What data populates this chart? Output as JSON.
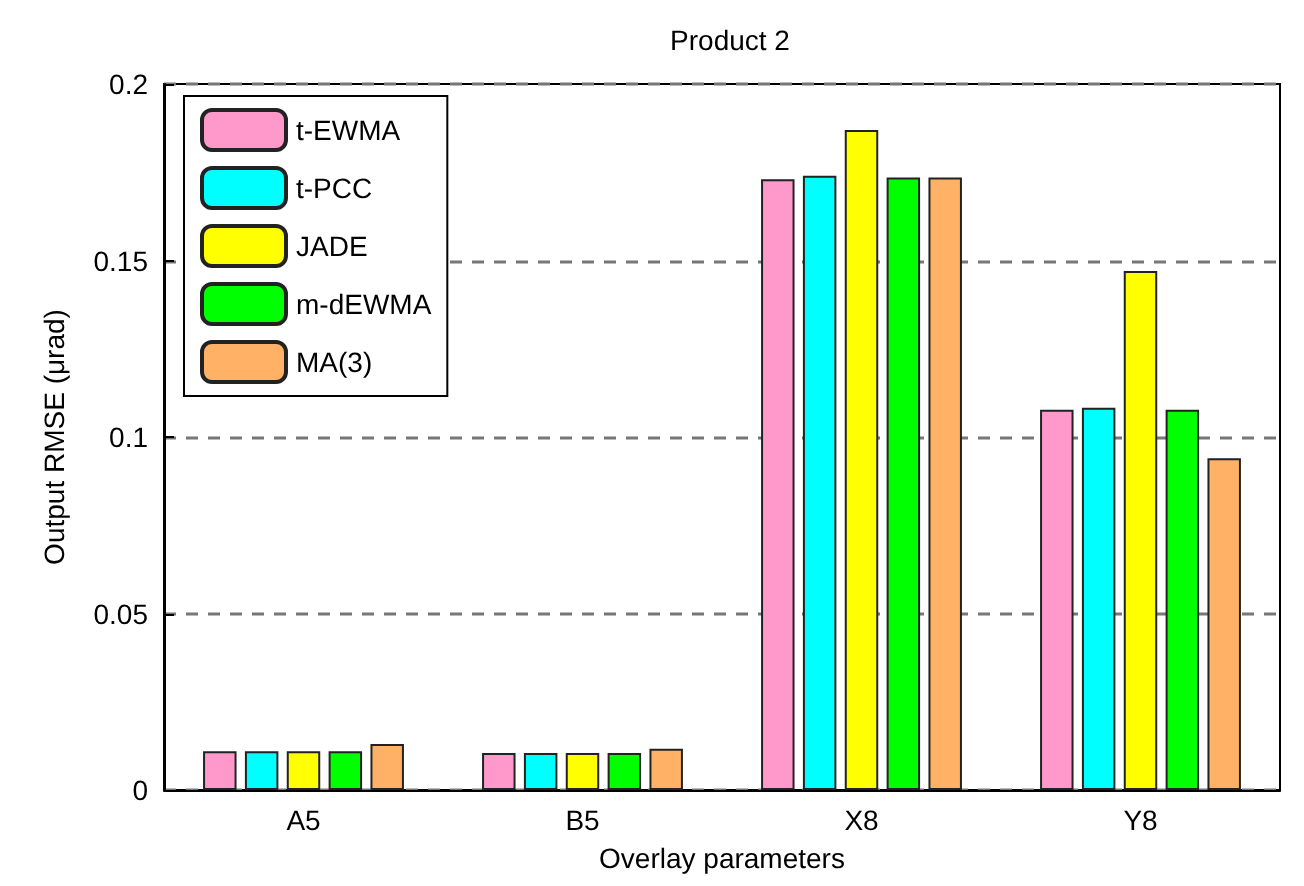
{
  "chart_data": {
    "type": "bar",
    "title": "Product 2",
    "xlabel": "Overlay parameters",
    "ylabel": "Output RMSE (μrad)",
    "categories": [
      "A5",
      "B5",
      "X8",
      "Y8"
    ],
    "series": [
      {
        "name": "t-EWMA",
        "color": "#ff99cc",
        "values": [
          0.011,
          0.0105,
          0.173,
          0.1077
        ]
      },
      {
        "name": "t-PCC",
        "color": "#00ffff",
        "values": [
          0.011,
          0.0105,
          0.174,
          0.1083
        ]
      },
      {
        "name": "JADE",
        "color": "#ffff00",
        "values": [
          0.011,
          0.0105,
          0.187,
          0.147
        ]
      },
      {
        "name": "m-dEWMA",
        "color": "#00ff00",
        "values": [
          0.011,
          0.0105,
          0.1735,
          0.1077
        ]
      },
      {
        "name": "MA(3)",
        "color": "#ffb266",
        "values": [
          0.013,
          0.0117,
          0.1735,
          0.094
        ]
      }
    ],
    "ylim": [
      0,
      0.2
    ],
    "yticks": [
      0,
      0.05,
      0.1,
      0.15,
      0.2
    ],
    "grid": "y",
    "legend": "top left"
  }
}
